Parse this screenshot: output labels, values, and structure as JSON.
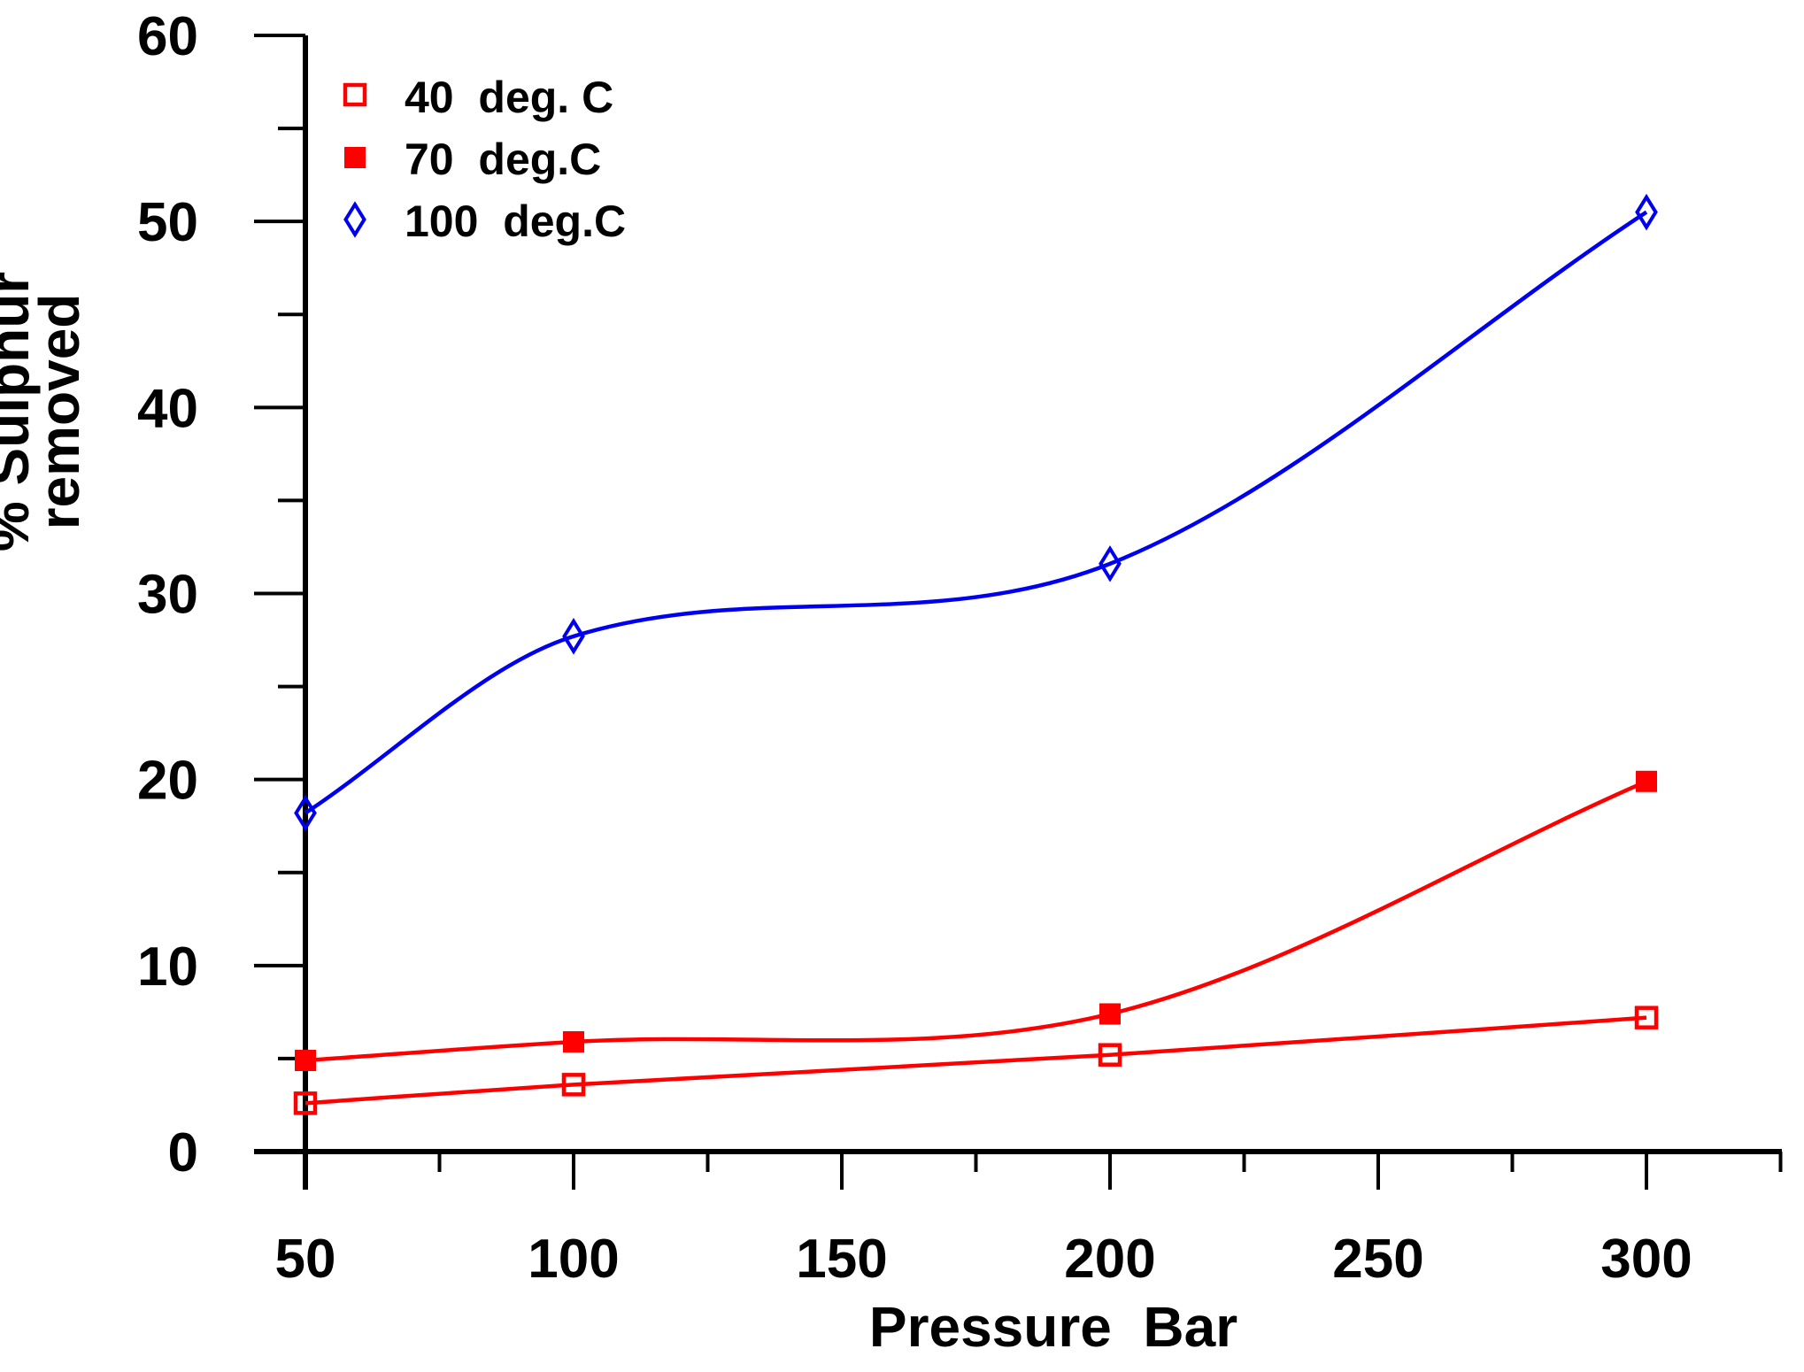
{
  "page": {
    "background": "#ffffff"
  },
  "chart_data": {
    "type": "line",
    "title": "",
    "xlabel": "Pressure  Bar",
    "ylabel_lines": [
      "% Sulphur",
      "removed"
    ],
    "xlim": [
      50,
      325
    ],
    "ylim": [
      0,
      60
    ],
    "x_major_ticks": [
      50,
      100,
      150,
      200,
      250,
      300
    ],
    "x_minor_ticks": [
      75,
      125,
      175,
      225,
      275,
      325
    ],
    "y_major_ticks": [
      0,
      10,
      20,
      30,
      40,
      50,
      60
    ],
    "y_minor_ticks": [
      5,
      15,
      25,
      35,
      45,
      55
    ],
    "grid": false,
    "legend_position": "top-left-inside",
    "axis_color": "#000000",
    "curve_style": "smooth",
    "series": [
      {
        "name": "40 deg. C",
        "legend_label": "40  deg. C",
        "color": "#ff0000",
        "marker": "open-square",
        "x": [
          50,
          100,
          200,
          300
        ],
        "y": [
          2.6,
          3.6,
          5.2,
          7.2
        ]
      },
      {
        "name": "70 deg.C",
        "legend_label": "70  deg.C",
        "color": "#ff0000",
        "marker": "filled-square",
        "x": [
          50,
          100,
          200,
          300
        ],
        "y": [
          4.9,
          5.9,
          7.4,
          19.9
        ]
      },
      {
        "name": "100 deg.C",
        "legend_label": "100  deg.C",
        "color": "#0000f0",
        "marker": "open-diamond",
        "x": [
          50,
          100,
          200,
          300
        ],
        "y": [
          18.2,
          27.7,
          31.6,
          50.5
        ]
      }
    ]
  }
}
